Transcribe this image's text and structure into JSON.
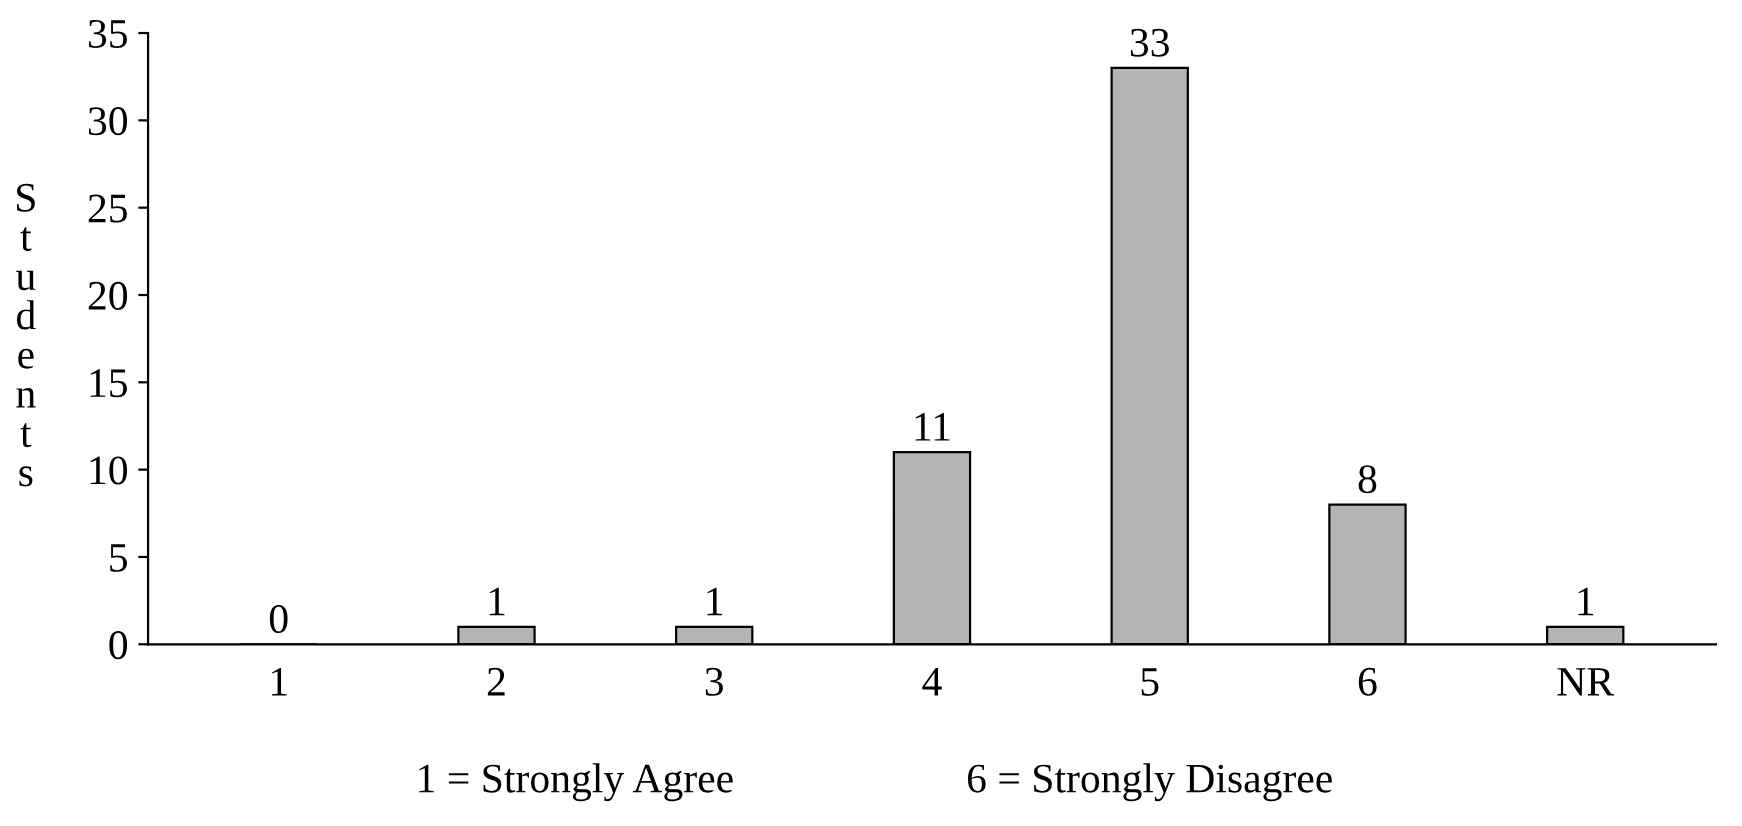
{
  "chart_data": {
    "type": "bar",
    "categories": [
      "1",
      "2",
      "3",
      "4",
      "5",
      "6",
      "NR"
    ],
    "values": [
      0,
      1,
      1,
      11,
      33,
      8,
      1
    ],
    "color": "#b4b4b4",
    "ylabel": "Students",
    "ylim": [
      0,
      35
    ],
    "yticks": [
      0,
      5,
      10,
      15,
      20,
      25,
      30,
      35
    ],
    "data_labels": true,
    "grid": false,
    "annotations": [
      "1 = Strongly Agree",
      "6 = Strongly Disagree"
    ]
  }
}
